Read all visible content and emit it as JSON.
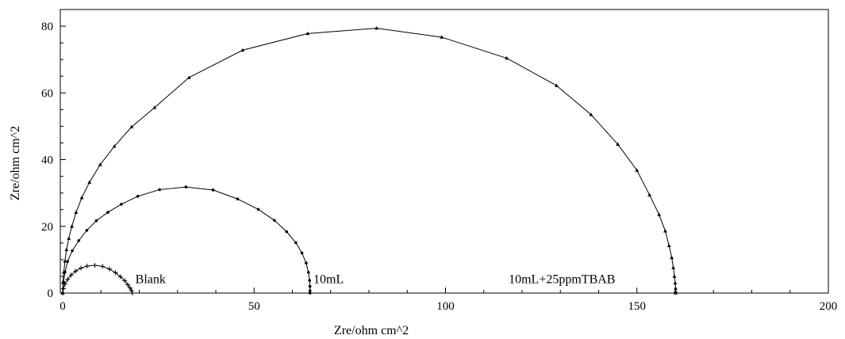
{
  "chart_data": {
    "type": "scatter",
    "xlabel": "Zre/ohm cm^2",
    "ylabel": "Zre/ohm cm^2",
    "xlim": [
      0,
      200
    ],
    "ylim": [
      0,
      85
    ],
    "x_ticks": [
      0,
      50,
      100,
      150,
      200
    ],
    "y_ticks": [
      0,
      20,
      40,
      60,
      80
    ],
    "grid": false,
    "series": [
      {
        "name": "Blank",
        "marker": "+",
        "color": "#000000",
        "label_at": [
          19,
          3
        ],
        "x": [
          0.0,
          0.2,
          0.6,
          1.3,
          2.2,
          3.4,
          4.8,
          6.4,
          8.4,
          10.4,
          12.2,
          13.8,
          15.1,
          16.2,
          17.0,
          17.6,
          18.0,
          18.2
        ],
        "y": [
          0.0,
          1.3,
          2.7,
          4.1,
          5.4,
          6.6,
          7.5,
          8.1,
          8.3,
          8.0,
          7.2,
          6.1,
          4.9,
          3.7,
          2.5,
          1.5,
          0.7,
          0.0
        ]
      },
      {
        "name": "10mL",
        "marker": "•",
        "color": "#000000",
        "label_at": [
          65.5,
          3
        ],
        "x": [
          0.0,
          0.2,
          0.6,
          1.3,
          2.5,
          4.2,
          6.3,
          8.8,
          11.8,
          15.3,
          19.6,
          25.3,
          32.2,
          39.3,
          45.7,
          51.1,
          55.3,
          58.5,
          60.9,
          62.5,
          63.6,
          64.2,
          64.5,
          64.6,
          64.6,
          64.6
        ],
        "y": [
          0.0,
          3.3,
          6.3,
          9.5,
          12.7,
          15.7,
          18.8,
          21.7,
          24.2,
          26.6,
          29.0,
          31.0,
          31.8,
          30.9,
          28.2,
          25.1,
          21.8,
          18.4,
          15.1,
          12.0,
          9.0,
          6.2,
          3.8,
          2.0,
          0.7,
          0.0
        ]
      },
      {
        "name": "10mL+25ppmTBAB",
        "marker": "▲",
        "color": "#000000",
        "label_at": [
          116.5,
          3
        ],
        "x": [
          0.0,
          0.1,
          0.3,
          0.6,
          1.0,
          1.6,
          2.4,
          3.5,
          5.0,
          7.0,
          9.8,
          13.5,
          18.0,
          24.0,
          33.0,
          47.0,
          64.0,
          82.0,
          99.0,
          116.0,
          129.0,
          138.0,
          145.0,
          150.0,
          153.3,
          155.8,
          157.4,
          158.4,
          159.1,
          159.5,
          159.8,
          160.0,
          160.1,
          160.1,
          160.1
        ],
        "y": [
          0.0,
          3.2,
          6.3,
          9.6,
          13.0,
          16.4,
          20.0,
          24.2,
          28.6,
          33.2,
          38.5,
          44.0,
          49.8,
          55.6,
          64.6,
          72.8,
          77.8,
          79.4,
          76.7,
          70.4,
          62.2,
          53.5,
          44.6,
          36.8,
          29.4,
          23.5,
          18.6,
          14.2,
          10.6,
          7.6,
          5.0,
          3.0,
          1.4,
          0.5,
          0.0
        ]
      }
    ]
  }
}
